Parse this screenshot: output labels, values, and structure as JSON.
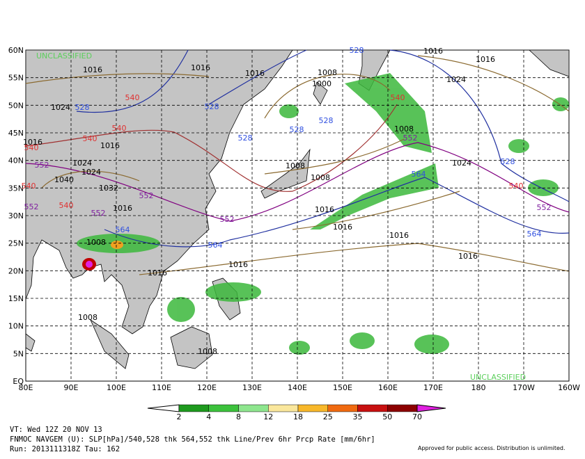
{
  "map": {
    "lat_ticks": [
      "60N",
      "55N",
      "50N",
      "45N",
      "40N",
      "35N",
      "30N",
      "25N",
      "20N",
      "15N",
      "10N",
      "5N",
      "EQ"
    ],
    "lon_ticks": [
      "80E",
      "90E",
      "100E",
      "110E",
      "120E",
      "130E",
      "140E",
      "150E",
      "160E",
      "170E",
      "180",
      "170W",
      "160W"
    ],
    "watermarks": [
      "UNCLASSIFIED",
      "UNCLASSIFIED"
    ],
    "contour_labels": [
      "1016",
      "1016",
      "1016",
      "1008",
      "1000",
      "1016",
      "1016",
      "1024",
      "1008",
      "1024",
      "1008",
      "1016",
      "1016",
      "1016",
      "1016",
      "1016",
      "1008",
      "1016",
      "1032",
      "1024",
      "1024",
      "1040",
      "1024",
      "1016",
      "1016",
      "1008",
      "1008",
      "1016",
      "1008",
      "540",
      "540",
      "540",
      "540",
      "540",
      "540",
      "540",
      "540",
      "528",
      "528",
      "528",
      "528",
      "528",
      "528",
      "528",
      "552",
      "552",
      "552",
      "552",
      "552",
      "552",
      "552",
      "564",
      "564",
      "564",
      "564"
    ]
  },
  "colorbar": {
    "ticks": [
      "2",
      "4",
      "8",
      "12",
      "18",
      "25",
      "35",
      "50",
      "70"
    ]
  },
  "footer": {
    "valid_time": "VT: Wed 12Z 20 NOV 13",
    "description": "FNMOC NAVGEM (U): SLP[hPa]/540,528 thk 564,552 thk Line/Prev 6hr Prcp Rate [mm/6hr]",
    "run": "Run: 2013111318Z Tau: 162",
    "notice": "Approved for public access. Distribution is unlimited."
  }
}
